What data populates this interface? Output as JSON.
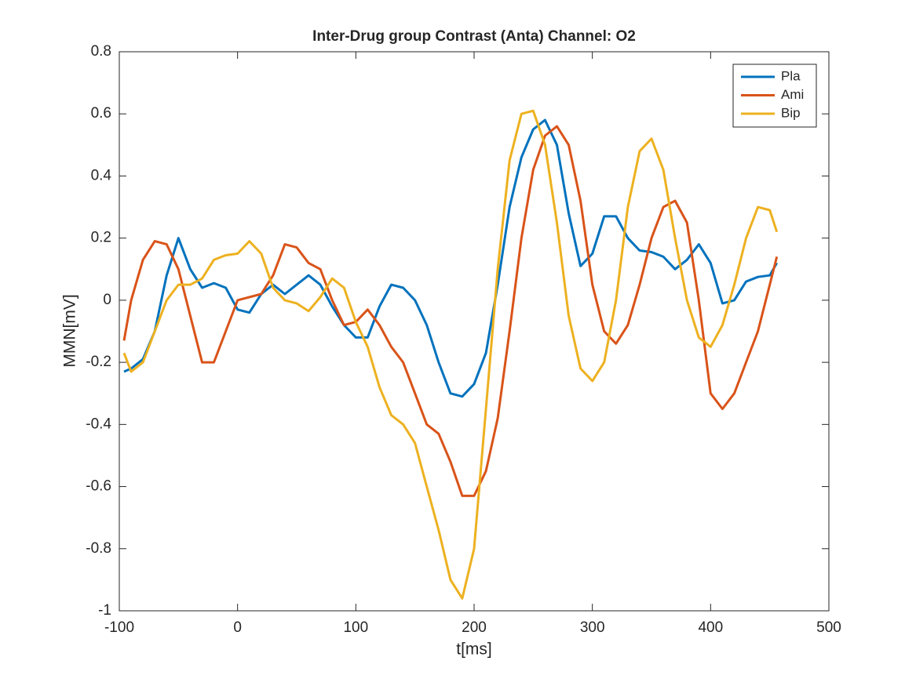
{
  "chart_data": {
    "type": "line",
    "title": "Inter-Drug group Contrast (Anta) Channel: O2",
    "x_label": "t[ms]",
    "y_label": "MMN[mV]",
    "x": [
      -96,
      -90,
      -80,
      -70,
      -60,
      -50,
      -40,
      -30,
      -20,
      -10,
      0,
      10,
      20,
      30,
      40,
      50,
      60,
      70,
      80,
      90,
      100,
      110,
      120,
      130,
      140,
      150,
      160,
      170,
      180,
      190,
      200,
      210,
      220,
      230,
      240,
      250,
      260,
      270,
      280,
      290,
      300,
      310,
      320,
      330,
      340,
      350,
      360,
      370,
      380,
      390,
      400,
      410,
      420,
      430,
      440,
      450,
      456
    ],
    "series": [
      {
        "name": "Pla",
        "color": "#0072bd",
        "values": [
          -0.23,
          -0.22,
          -0.19,
          -0.1,
          0.08,
          0.2,
          0.1,
          0.04,
          0.055,
          0.04,
          -0.03,
          -0.04,
          0.02,
          0.05,
          0.02,
          0.05,
          0.08,
          0.05,
          -0.02,
          -0.08,
          -0.12,
          -0.12,
          -0.02,
          0.05,
          0.04,
          0.0,
          -0.08,
          -0.2,
          -0.3,
          -0.31,
          -0.27,
          -0.17,
          0.05,
          0.3,
          0.46,
          0.55,
          0.58,
          0.5,
          0.28,
          0.11,
          0.15,
          0.27,
          0.27,
          0.2,
          0.16,
          0.155,
          0.14,
          0.1,
          0.13,
          0.18,
          0.12,
          -0.01,
          0.0,
          0.06,
          0.075,
          0.08,
          0.12
        ]
      },
      {
        "name": "Ami",
        "color": "#d95319",
        "values": [
          -0.13,
          0.0,
          0.13,
          0.19,
          0.18,
          0.1,
          -0.05,
          -0.2,
          -0.2,
          -0.1,
          0.0,
          0.01,
          0.02,
          0.08,
          0.18,
          0.17,
          0.12,
          0.1,
          0.0,
          -0.08,
          -0.07,
          -0.03,
          -0.08,
          -0.15,
          -0.2,
          -0.3,
          -0.4,
          -0.43,
          -0.52,
          -0.63,
          -0.63,
          -0.55,
          -0.38,
          -0.1,
          0.2,
          0.42,
          0.53,
          0.56,
          0.5,
          0.32,
          0.05,
          -0.1,
          -0.14,
          -0.08,
          0.05,
          0.2,
          0.3,
          0.32,
          0.25,
          0.0,
          -0.3,
          -0.35,
          -0.3,
          -0.2,
          -0.1,
          0.05,
          0.14
        ]
      },
      {
        "name": "Bip",
        "color": "#edb120",
        "values": [
          -0.17,
          -0.23,
          -0.2,
          -0.1,
          0.0,
          0.05,
          0.05,
          0.07,
          0.13,
          0.145,
          0.15,
          0.19,
          0.15,
          0.04,
          0.0,
          -0.01,
          -0.035,
          0.01,
          0.07,
          0.04,
          -0.07,
          -0.15,
          -0.28,
          -0.37,
          -0.4,
          -0.46,
          -0.6,
          -0.74,
          -0.9,
          -0.96,
          -0.8,
          -0.35,
          0.1,
          0.45,
          0.6,
          0.61,
          0.5,
          0.25,
          -0.05,
          -0.22,
          -0.26,
          -0.2,
          0.0,
          0.3,
          0.48,
          0.52,
          0.42,
          0.2,
          0.0,
          -0.12,
          -0.15,
          -0.08,
          0.05,
          0.2,
          0.3,
          0.29,
          0.22
        ]
      }
    ],
    "xlim": [
      -100,
      500
    ],
    "xticks": [
      -100,
      0,
      100,
      200,
      300,
      400,
      500
    ],
    "ylim": [
      -1,
      0.8
    ],
    "yticks": [
      -1,
      -0.8,
      -0.6,
      -0.4,
      -0.2,
      0,
      0.2,
      0.4,
      0.6,
      0.8
    ],
    "legend": "northeast",
    "grid": false
  }
}
